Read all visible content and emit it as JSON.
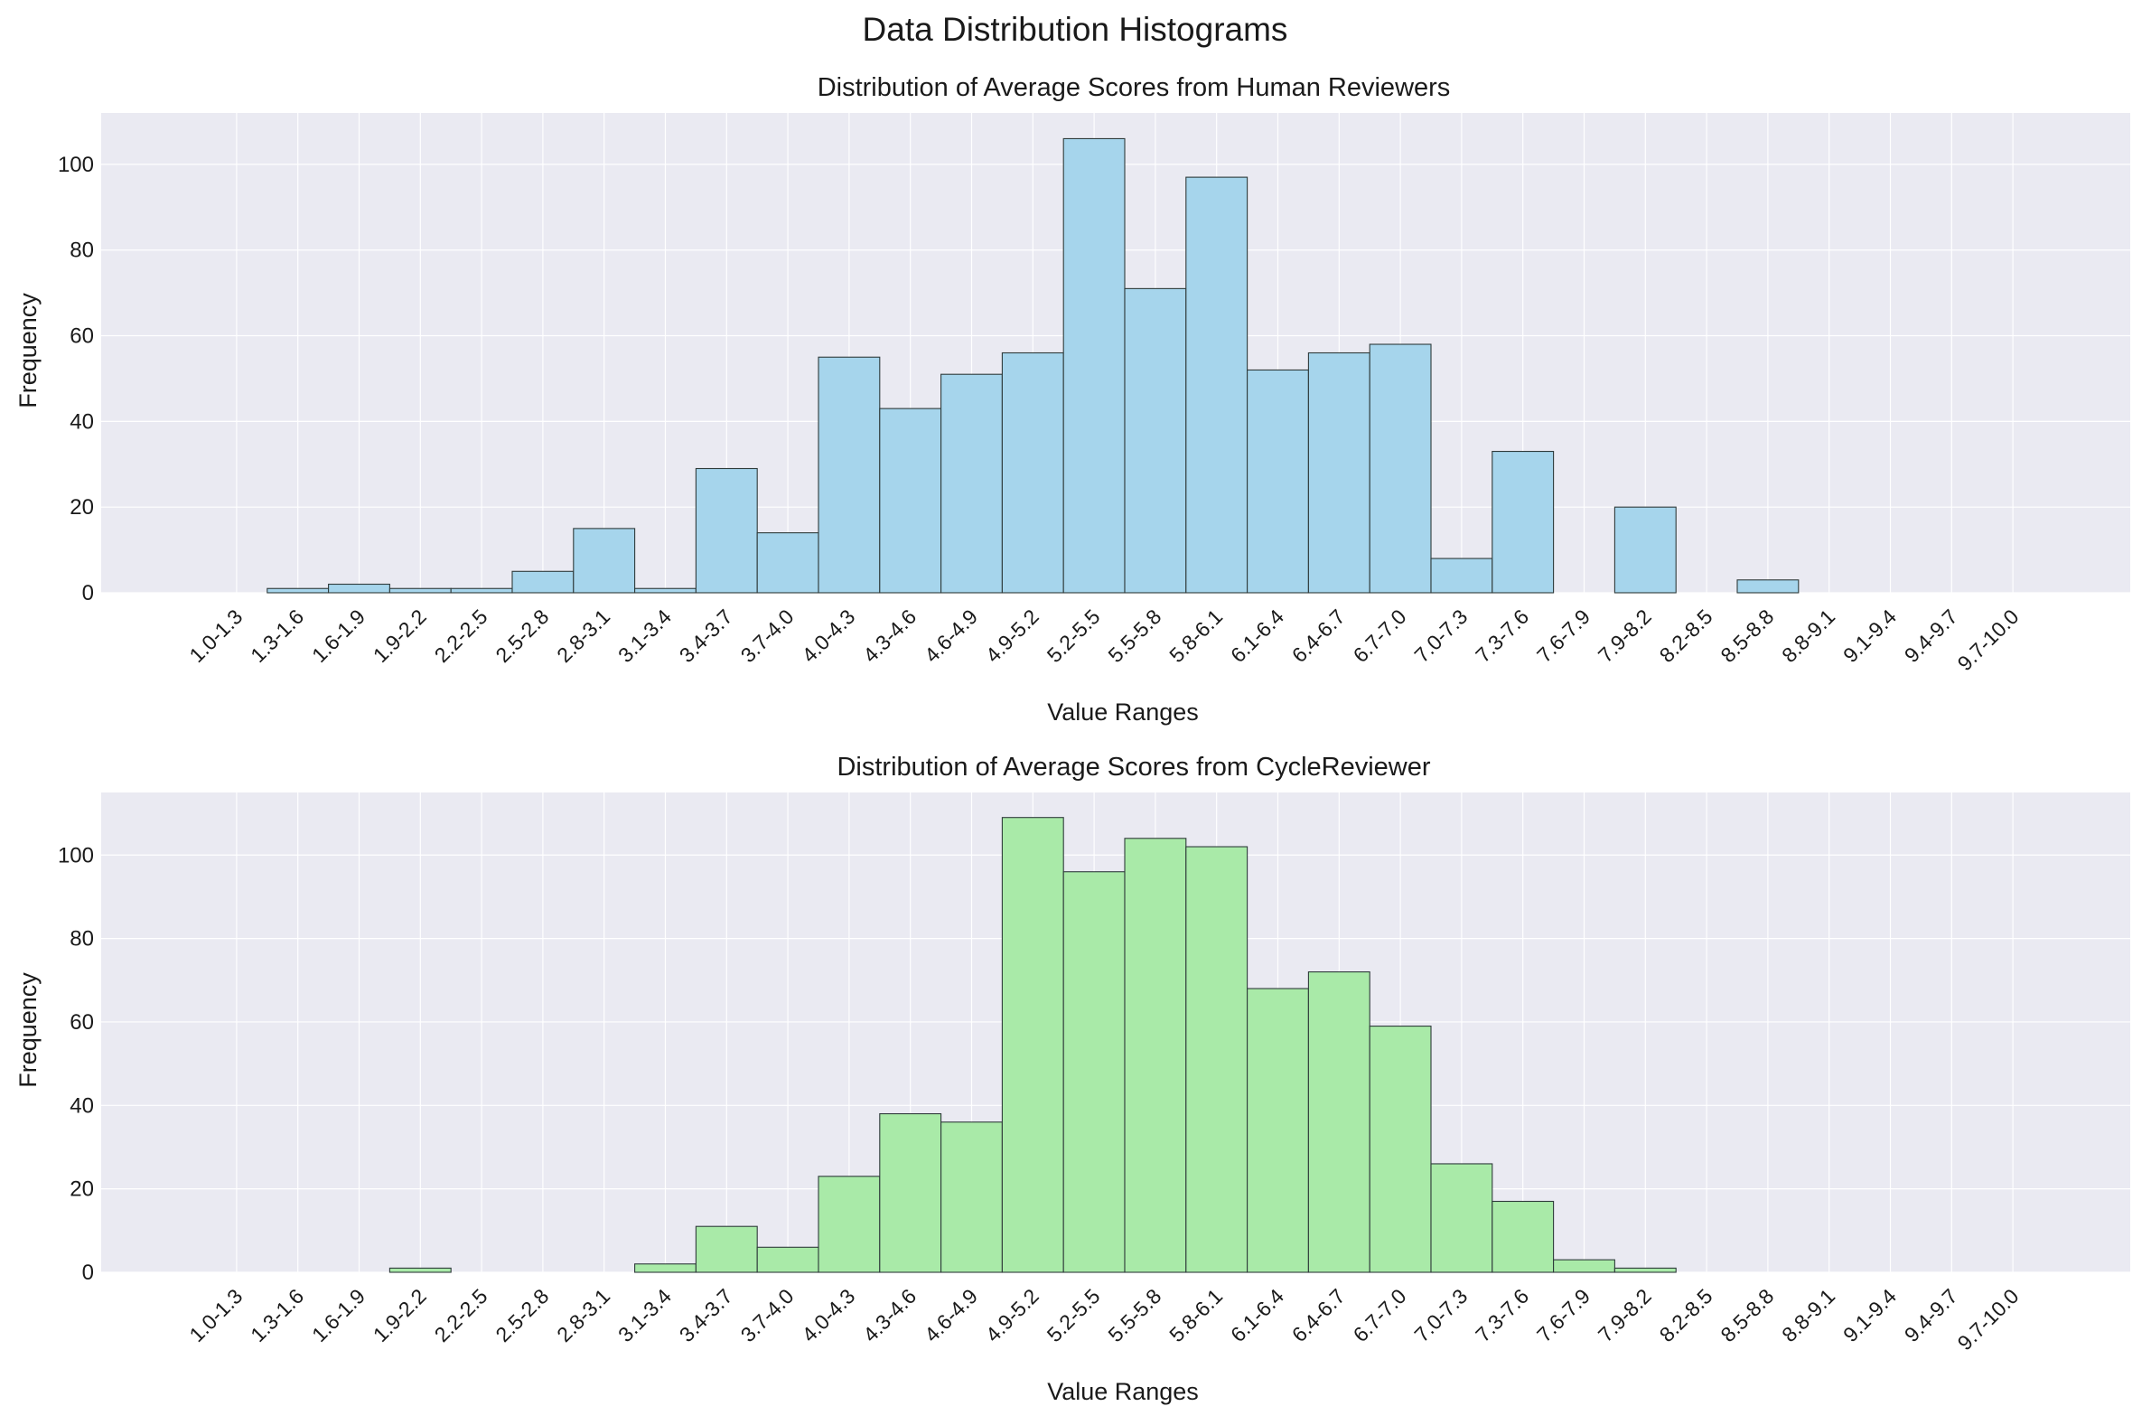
{
  "figure": {
    "title": "Data Distribution Histograms"
  },
  "colors": {
    "panel_bg": "#eaeaf2",
    "human_bar": "#a6d5ec",
    "cycle_bar": "#a9eaa8",
    "edge": "#2f3b3b",
    "grid": "#ffffff"
  },
  "chart_data": [
    {
      "type": "bar",
      "title": "Distribution of Average Scores from Human Reviewers",
      "xlabel": "Value Ranges",
      "ylabel": "Frequency",
      "ylim": [
        0,
        112
      ],
      "yticks": [
        0,
        20,
        40,
        60,
        80,
        100
      ],
      "grid": true,
      "categories": [
        "1.0-1.3",
        "1.3-1.6",
        "1.6-1.9",
        "1.9-2.2",
        "2.2-2.5",
        "2.5-2.8",
        "2.8-3.1",
        "3.1-3.4",
        "3.4-3.7",
        "3.7-4.0",
        "4.0-4.3",
        "4.3-4.6",
        "4.6-4.9",
        "4.9-5.2",
        "5.2-5.5",
        "5.5-5.8",
        "5.8-6.1",
        "6.1-6.4",
        "6.4-6.7",
        "6.7-7.0",
        "7.0-7.3",
        "7.3-7.6",
        "7.6-7.9",
        "7.9-8.2",
        "8.2-8.5",
        "8.5-8.8",
        "8.8-9.1",
        "9.1-9.4",
        "9.4-9.7",
        "9.7-10.0"
      ],
      "values": [
        0,
        1,
        2,
        1,
        1,
        5,
        15,
        1,
        29,
        14,
        55,
        43,
        51,
        56,
        106,
        71,
        97,
        52,
        56,
        58,
        8,
        33,
        0,
        20,
        0,
        3,
        0,
        0,
        0,
        0
      ],
      "color": "#a6d5ec"
    },
    {
      "type": "bar",
      "title": "Distribution of Average Scores from CycleReviewer",
      "xlabel": "Value Ranges",
      "ylabel": "Frequency",
      "ylim": [
        0,
        115
      ],
      "yticks": [
        0,
        20,
        40,
        60,
        80,
        100
      ],
      "grid": true,
      "categories": [
        "1.0-1.3",
        "1.3-1.6",
        "1.6-1.9",
        "1.9-2.2",
        "2.2-2.5",
        "2.5-2.8",
        "2.8-3.1",
        "3.1-3.4",
        "3.4-3.7",
        "3.7-4.0",
        "4.0-4.3",
        "4.3-4.6",
        "4.6-4.9",
        "4.9-5.2",
        "5.2-5.5",
        "5.5-5.8",
        "5.8-6.1",
        "6.1-6.4",
        "6.4-6.7",
        "6.7-7.0",
        "7.0-7.3",
        "7.3-7.6",
        "7.6-7.9",
        "7.9-8.2",
        "8.2-8.5",
        "8.5-8.8",
        "8.8-9.1",
        "9.1-9.4",
        "9.4-9.7",
        "9.7-10.0"
      ],
      "values": [
        0,
        0,
        0,
        1,
        0,
        0,
        0,
        2,
        11,
        6,
        23,
        38,
        36,
        109,
        96,
        104,
        102,
        68,
        72,
        59,
        26,
        17,
        3,
        1,
        0,
        0,
        0,
        0,
        0,
        0
      ],
      "color": "#a9eaa8"
    }
  ]
}
